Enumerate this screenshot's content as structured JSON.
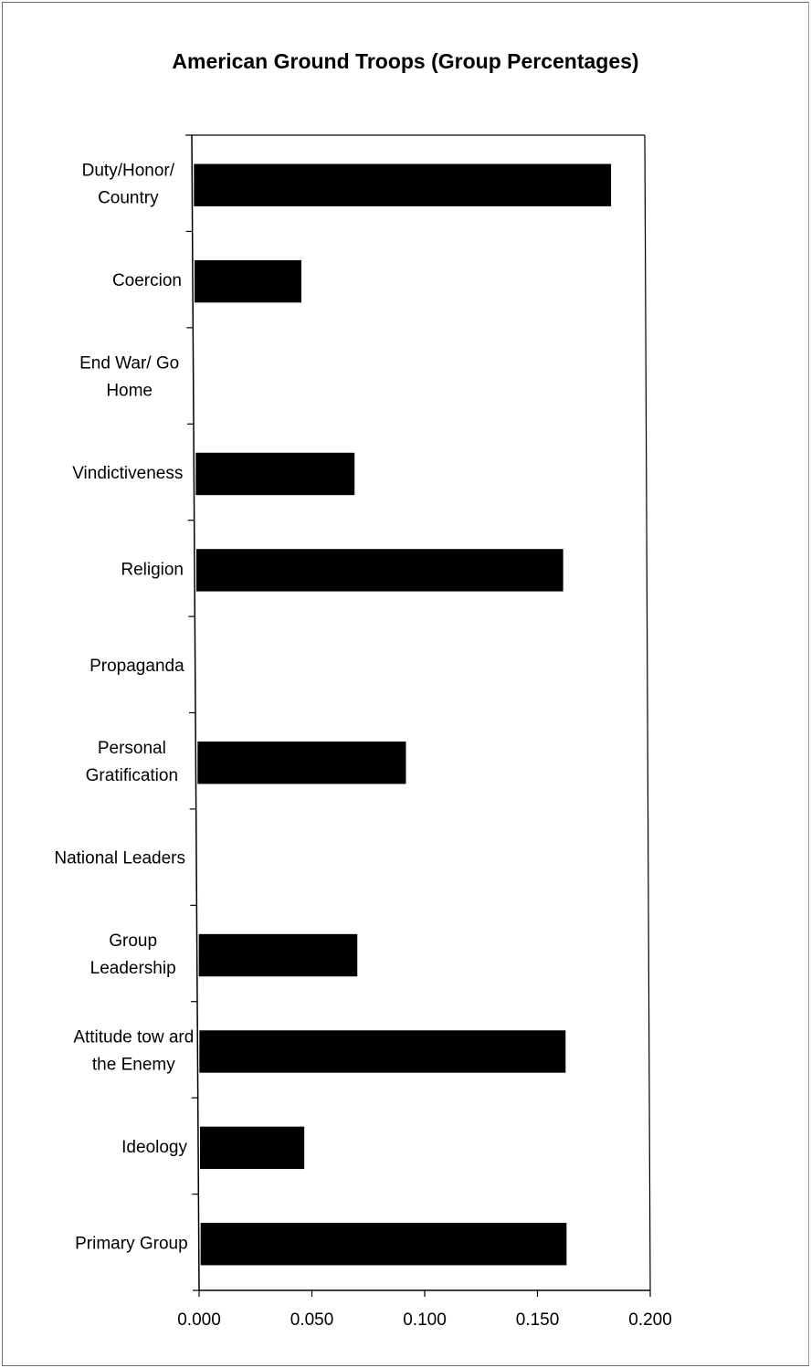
{
  "chart_data": {
    "type": "bar",
    "orientation": "horizontal",
    "title": "American Ground Troops (Group Percentages)",
    "xlabel": "",
    "ylabel": "",
    "xlim": [
      0,
      0.2
    ],
    "x_ticks": [
      "0.000",
      "0.050",
      "0.100",
      "0.150",
      "0.200"
    ],
    "categories": [
      [
        "Duty/Honor/",
        "Country"
      ],
      [
        "Coercion"
      ],
      [
        "End War/ Go",
        "Home"
      ],
      [
        "Vindictiveness"
      ],
      [
        "Religion"
      ],
      [
        "Propaganda"
      ],
      [
        "Personal",
        "Gratification"
      ],
      [
        "National Leaders"
      ],
      [
        "Group",
        "Leadership"
      ],
      [
        "Attitude tow ard",
        "the Enemy"
      ],
      [
        "Ideology"
      ],
      [
        "Primary Group"
      ]
    ],
    "values": [
      0.185,
      0.048,
      0.0,
      0.071,
      0.163,
      0.0,
      0.093,
      0.0,
      0.071,
      0.163,
      0.047,
      0.163
    ],
    "bar_color": "#000000",
    "grid": false,
    "legend": "none"
  }
}
